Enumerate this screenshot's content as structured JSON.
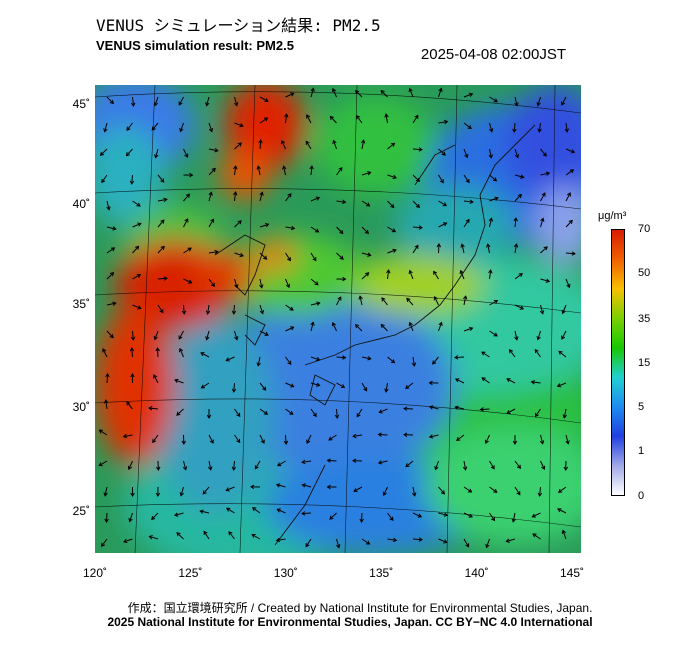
{
  "header": {
    "title_jp": "VENUS シミュレーション結果: PM2.5",
    "title_en": "VENUS simulation result: PM2.5",
    "timestamp": "2025-04-08 02:00JST"
  },
  "map": {
    "lat_labels": [
      "45˚",
      "40˚",
      "35˚",
      "30˚",
      "25˚"
    ],
    "lon_labels": [
      "120˚",
      "125˚",
      "130˚",
      "135˚",
      "140˚",
      "145˚"
    ],
    "lat_values": [
      45,
      40,
      35,
      30,
      25
    ],
    "lon_values": [
      120,
      125,
      130,
      135,
      140,
      145
    ],
    "lat_range": [
      23,
      46
    ],
    "lon_range": [
      120,
      145
    ]
  },
  "colorbar": {
    "unit": "μg/m³",
    "ticks": [
      "70",
      "50",
      "35",
      "15",
      "5",
      "1",
      "0"
    ],
    "colors": [
      "#d81c00",
      "#f06000",
      "#f8c000",
      "#7ad000",
      "#18c800",
      "#20d0d0",
      "#1e8cf0",
      "#2040e0",
      "#a0a8e8",
      "#ffffff"
    ]
  },
  "credits": {
    "line1": "作成：国立環境研究所 / Created by National Institute for Environmental Studies, Japan.",
    "line2": "2025 National Institute for Environmental Studies, Japan. CC BY−NC 4.0 International"
  }
}
